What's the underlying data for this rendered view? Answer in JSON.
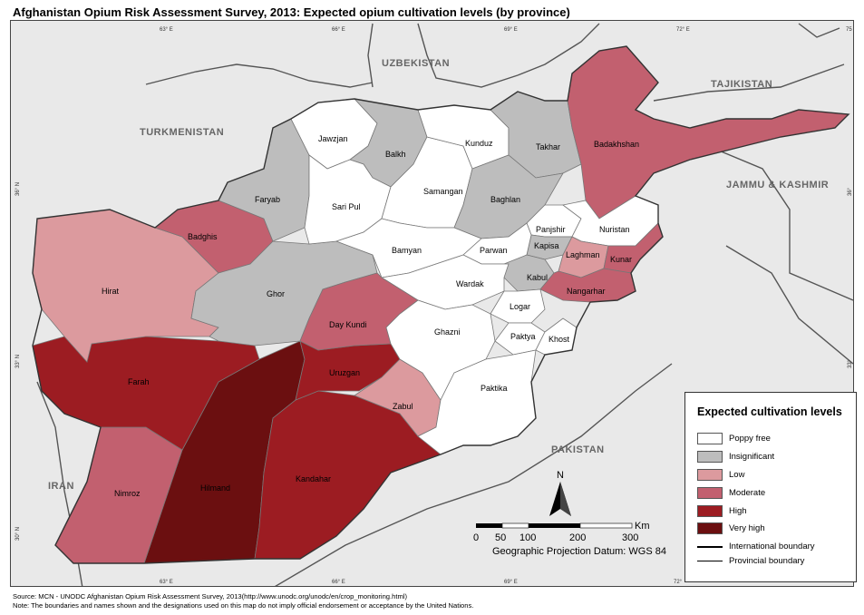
{
  "title": "Afghanistan Opium Risk Assessment Survey, 2013: Expected opium cultivation levels (by province)",
  "colors": {
    "poppy_free": "#ffffff",
    "insignificant": "#bdbdbd",
    "low": "#dc9a9e",
    "moderate": "#c2606f",
    "high": "#9c1c22",
    "very_high": "#6b0f10",
    "background": "#e9e9e9"
  },
  "countries": [
    "UZBEKISTAN",
    "TAJIKISTAN",
    "TURKMENISTAN",
    "JAMMU & KASHMIR",
    "IRAN",
    "PAKISTAN"
  ],
  "coords_top": [
    "63° E",
    "66° E",
    "69° E",
    "72° E",
    "75"
  ],
  "coords_bottom": [
    "63° E",
    "66° E",
    "69° E",
    "72°"
  ],
  "coords_left": [
    "36° N",
    "33° N",
    "30° N"
  ],
  "coords_right": [
    "36°",
    "33°"
  ],
  "provinces": [
    {
      "name": "Jawzjan",
      "level": "poppy_free"
    },
    {
      "name": "Balkh",
      "level": "insignificant"
    },
    {
      "name": "Kunduz",
      "level": "poppy_free"
    },
    {
      "name": "Takhar",
      "level": "insignificant"
    },
    {
      "name": "Badakhshan",
      "level": "moderate"
    },
    {
      "name": "Faryab",
      "level": "insignificant"
    },
    {
      "name": "Sari Pul",
      "level": "poppy_free"
    },
    {
      "name": "Samangan",
      "level": "poppy_free"
    },
    {
      "name": "Baghlan",
      "level": "insignificant"
    },
    {
      "name": "Panjshir",
      "level": "poppy_free"
    },
    {
      "name": "Nuristan",
      "level": "poppy_free"
    },
    {
      "name": "Badghis",
      "level": "moderate"
    },
    {
      "name": "Bamyan",
      "level": "poppy_free"
    },
    {
      "name": "Parwan",
      "level": "poppy_free"
    },
    {
      "name": "Kapisa",
      "level": "insignificant"
    },
    {
      "name": "Laghman",
      "level": "low"
    },
    {
      "name": "Kunar",
      "level": "moderate"
    },
    {
      "name": "Hirat",
      "level": "low"
    },
    {
      "name": "Ghor",
      "level": "insignificant"
    },
    {
      "name": "Wardak",
      "level": "poppy_free"
    },
    {
      "name": "Kabul",
      "level": "insignificant"
    },
    {
      "name": "Nangarhar",
      "level": "moderate"
    },
    {
      "name": "Logar",
      "level": "poppy_free"
    },
    {
      "name": "Day Kundi",
      "level": "moderate"
    },
    {
      "name": "Ghazni",
      "level": "poppy_free"
    },
    {
      "name": "Paktya",
      "level": "poppy_free"
    },
    {
      "name": "Khost",
      "level": "poppy_free"
    },
    {
      "name": "Farah",
      "level": "high"
    },
    {
      "name": "Uruzgan",
      "level": "high"
    },
    {
      "name": "Paktika",
      "level": "poppy_free"
    },
    {
      "name": "Zabul",
      "level": "low"
    },
    {
      "name": "Nimroz",
      "level": "moderate"
    },
    {
      "name": "Hilmand",
      "level": "very_high"
    },
    {
      "name": "Kandahar",
      "level": "high"
    }
  ],
  "legend": {
    "title": "Expected cultivation levels",
    "items": [
      {
        "label": "Poppy free",
        "level": "poppy_free"
      },
      {
        "label": "Insignificant",
        "level": "insignificant"
      },
      {
        "label": "Low",
        "level": "low"
      },
      {
        "label": "Moderate",
        "level": "moderate"
      },
      {
        "label": "High",
        "level": "high"
      },
      {
        "label": "Very high",
        "level": "very_high"
      }
    ],
    "international_boundary": "International boundary",
    "provincial_boundary": "Provincial boundary"
  },
  "north_label": "N",
  "scale": {
    "ticks": [
      "0",
      "50",
      "100",
      "200",
      "300"
    ],
    "unit": "Km",
    "datum": "Geographic Projection Datum: WGS 84"
  },
  "source": "Source: MCN - UNODC Afghanistan Opium Risk Assessment Survey, 2013(http://www.unodc.org/unodc/en/crop_monitoring.html)",
  "note": "Note: The boundaries and names shown and the designations used on this map do not imply official endorsement or acceptance by the United Nations."
}
